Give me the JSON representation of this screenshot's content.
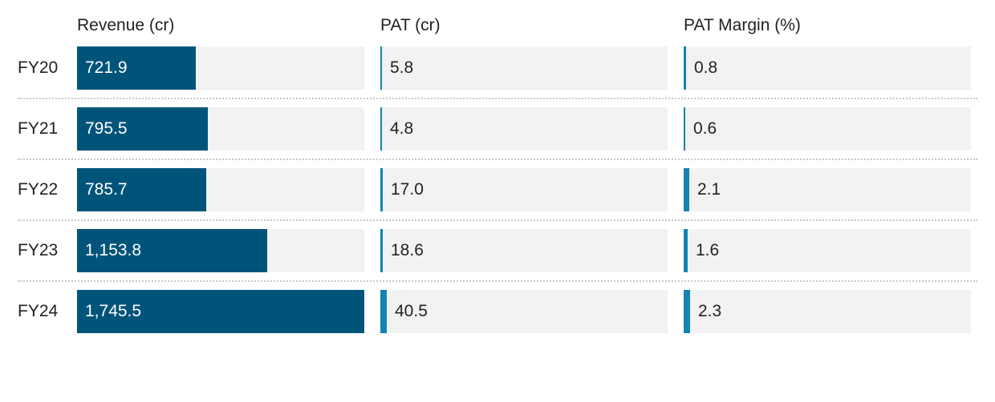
{
  "chart_data": {
    "type": "bar",
    "categories": [
      "FY20",
      "FY21",
      "FY22",
      "FY23",
      "FY24"
    ],
    "series": [
      {
        "name": "Revenue (cr)",
        "values": [
          721.9,
          795.5,
          785.7,
          1153.8,
          1745.5
        ],
        "labels": [
          "721.9",
          "795.5",
          "785.7",
          "1,153.8",
          "1,745.5"
        ],
        "color": "#00547a"
      },
      {
        "name": "PAT (cr)",
        "values": [
          5.8,
          4.8,
          17.0,
          18.6,
          40.5
        ],
        "labels": [
          "5.8",
          "4.8",
          "17.0",
          "18.6",
          "40.5"
        ],
        "color": "#1383b0"
      },
      {
        "name": "PAT Margin (%)",
        "values": [
          0.8,
          0.6,
          2.1,
          1.6,
          2.3
        ],
        "labels": [
          "0.8",
          "0.6",
          "2.1",
          "1.6",
          "2.3"
        ],
        "color": "#1383b0"
      }
    ],
    "layout_style": "small-multiples horizontal bars",
    "track_color": "#f2f2f2",
    "grid": false
  }
}
